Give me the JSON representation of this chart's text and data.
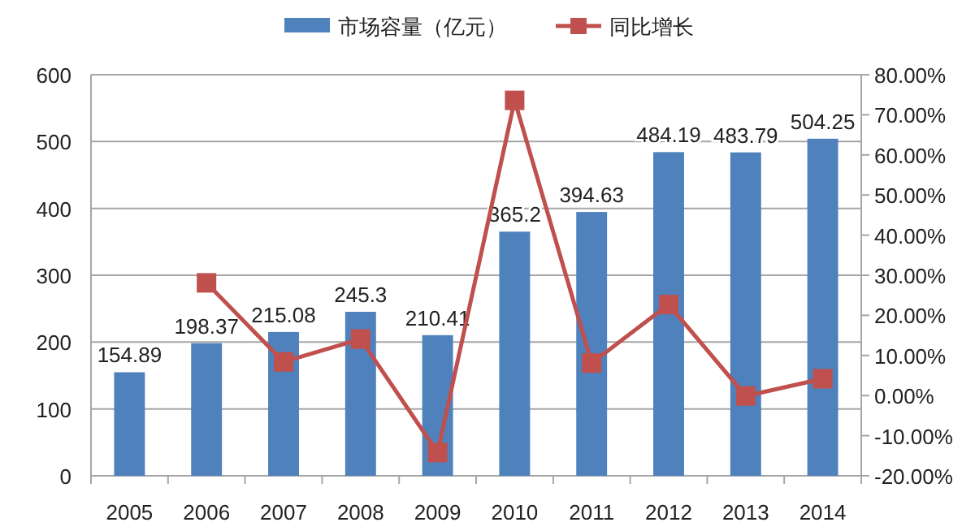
{
  "chart_data": {
    "type": "bar",
    "categories": [
      "2005",
      "2006",
      "2007",
      "2008",
      "2009",
      "2010",
      "2011",
      "2012",
      "2013",
      "2014"
    ],
    "series": [
      {
        "name": "市场容量（亿元）",
        "color": "#4f81bd",
        "values": [
          154.89,
          198.37,
          215.08,
          245.3,
          210.41,
          365.2,
          394.63,
          484.19,
          483.79,
          504.25
        ],
        "value_labels": [
          "154.89",
          "198.37",
          "215.08",
          "245.3",
          "210.41",
          "365.2",
          "394.63",
          "484.19",
          "483.79",
          "504.25"
        ]
      },
      {
        "name": "同比增长",
        "type": "line",
        "axis": "y2",
        "color": "#c0504d",
        "marker": "square",
        "values": [
          null,
          28.1,
          8.4,
          14.1,
          -14.2,
          73.6,
          8.1,
          22.7,
          -0.1,
          4.2
        ]
      }
    ],
    "ylim": [
      0,
      600
    ],
    "yticks": [
      0,
      100,
      200,
      300,
      400,
      500,
      600
    ],
    "y2lim": [
      -20,
      80
    ],
    "y2ticks": [
      {
        "value": -20,
        "label": "-20.00%"
      },
      {
        "value": -10,
        "label": "-10.00%"
      },
      {
        "value": 0,
        "label": "0.00%"
      },
      {
        "value": 10,
        "label": "10.00%"
      },
      {
        "value": 20,
        "label": "20.00%"
      },
      {
        "value": 30,
        "label": "30.00%"
      },
      {
        "value": 40,
        "label": "40.00%"
      },
      {
        "value": 50,
        "label": "50.00%"
      },
      {
        "value": 60,
        "label": "60.00%"
      },
      {
        "value": 70,
        "label": "70.00%"
      },
      {
        "value": 80,
        "label": "80.00%"
      }
    ],
    "grid": "y",
    "legend": "top"
  }
}
